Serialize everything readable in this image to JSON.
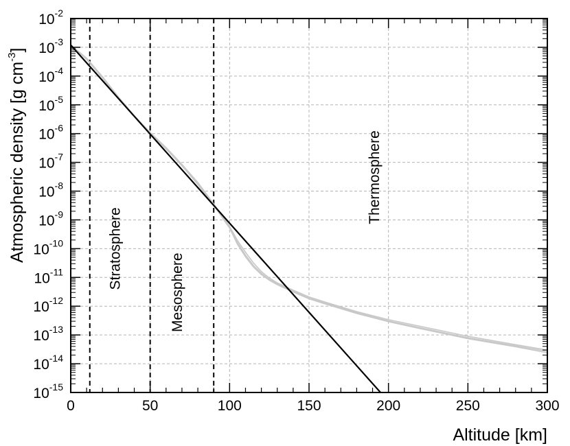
{
  "chart_data": {
    "type": "line",
    "title": "",
    "xlabel": "Altitude [km]",
    "ylabel": "Atmospheric density [g cm",
    "ylabel_exp": "-3",
    "ylabel_close": "]",
    "xlim": [
      0,
      300
    ],
    "ylim_exp": [
      -15,
      -2
    ],
    "y_scale": "log",
    "grid": true,
    "x_ticks": [
      0,
      50,
      100,
      150,
      200,
      250,
      300
    ],
    "x_tick_labels": [
      "0",
      "50",
      "100",
      "150",
      "200",
      "250",
      "300"
    ],
    "y_ticks": [
      "10^-15",
      "10^-14",
      "10^-13",
      "10^-12",
      "10^-11",
      "10^-10",
      "10^-9",
      "10^-8",
      "10^-7",
      "10^-6",
      "10^-5",
      "10^-4",
      "10^-3",
      "10^-2"
    ],
    "y_tick_base": "10",
    "y_tick_exponents": [
      "-15",
      "-14",
      "-13",
      "-12",
      "-11",
      "-10",
      "-9",
      "-8",
      "-7",
      "-6",
      "-5",
      "-4",
      "-3",
      "-2"
    ],
    "boundaries": [
      {
        "x": 12,
        "style": "dashed"
      },
      {
        "x": 50,
        "style": "dashed"
      },
      {
        "x": 90,
        "style": "dashed"
      }
    ],
    "region_labels": [
      {
        "text": "Stratosphere",
        "x": 31,
        "y": 1e-10
      },
      {
        "text": "Mesosphere",
        "x": 70,
        "y": 3e-12
      },
      {
        "text": "Thermosphere",
        "x": 194,
        "y": 3e-08
      }
    ],
    "series": [
      {
        "color": "#000000",
        "x": [
          0,
          195
        ],
        "y": [
          0.0012,
          1e-15
        ]
      },
      {
        "color": "#c8c8c8",
        "x": [
          0,
          10,
          20,
          30,
          40,
          50,
          60,
          70,
          80,
          90,
          100,
          105,
          110,
          115,
          120,
          125,
          130,
          140,
          150,
          160,
          180,
          200,
          220,
          250,
          280,
          300
        ],
        "y": [
          0.0012,
          0.0004,
          9e-05,
          1.8e-05,
          4e-06,
          1e-06,
          3e-07,
          8e-08,
          1.8e-08,
          3.4e-09,
          5.6e-10,
          1.6e-10,
          6e-11,
          2.6e-11,
          1.4e-11,
          8.5e-12,
          6e-12,
          3.3e-12,
          1.9e-12,
          1.3e-12,
          6e-13,
          3.1e-13,
          1.8e-13,
          8e-14,
          4.2e-14,
          2.7e-14
        ]
      },
      {
        "color": "#c8c8c8",
        "x": [
          0,
          10,
          20,
          30,
          40,
          50,
          60,
          70,
          80,
          90,
          100,
          105,
          110,
          115,
          120,
          125,
          130,
          140,
          150,
          160,
          180,
          200,
          220,
          250,
          280,
          300
        ],
        "y": [
          0.0012,
          0.00042,
          9.5e-05,
          1.9e-05,
          4.2e-06,
          1.1e-06,
          3.3e-07,
          8.5e-08,
          2e-08,
          3.6e-09,
          6e-10,
          1.9e-10,
          7.5e-11,
          3.2e-11,
          1.6e-11,
          9.5e-12,
          6.5e-12,
          3.6e-12,
          2.1e-12,
          1.4e-12,
          6.5e-13,
          3.4e-13,
          2e-13,
          9e-14,
          4.6e-14,
          3e-14
        ]
      },
      {
        "color": "#c8c8c8",
        "x": [
          0,
          10,
          20,
          30,
          40,
          50,
          60,
          70,
          80,
          90,
          100,
          105,
          110,
          115,
          120,
          125,
          130,
          140,
          150,
          160,
          180,
          200,
          220,
          250,
          280,
          300
        ],
        "y": [
          0.0012,
          0.00038,
          8.5e-05,
          1.7e-05,
          3.9e-06,
          1e-06,
          2.9e-07,
          7.6e-08,
          1.7e-08,
          3.2e-09,
          5.2e-10,
          1.4e-10,
          5.2e-11,
          2.3e-11,
          1.25e-11,
          8e-12,
          5.6e-12,
          3.1e-12,
          1.8e-12,
          1.2e-12,
          5.6e-13,
          2.9e-13,
          1.65e-13,
          7.4e-14,
          3.9e-14,
          2.4e-14
        ]
      }
    ]
  }
}
